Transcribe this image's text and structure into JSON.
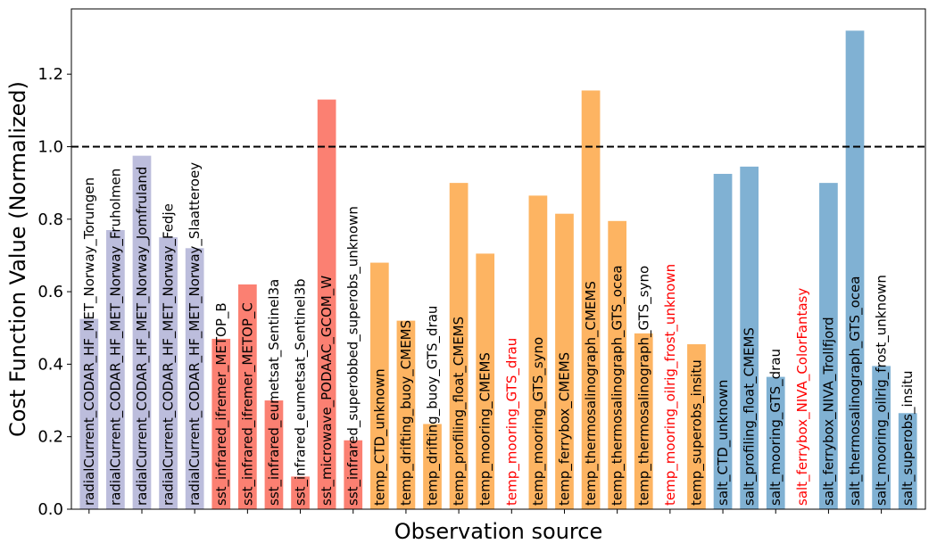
{
  "chart_data": {
    "type": "bar",
    "xlabel": "Observation source",
    "ylabel": "Cost Function Value (Normalized)",
    "ylim": [
      0,
      1.38
    ],
    "yticks": [
      "0.0",
      "0.2",
      "0.4",
      "0.6",
      "0.8",
      "1.0",
      "1.2"
    ],
    "reference_line": {
      "y": 1.0,
      "style": "dashed",
      "color": "#000000"
    },
    "grid": false,
    "legend": "none",
    "categories": [
      "radialCurrent_CODAR_HF_MET_Norway_Torungen",
      "radialCurrent_CODAR_HF_MET_Norway_Fruholmen",
      "radialCurrent_CODAR_HF_MET_Norway_Jomfruland",
      "radialCurrent_CODAR_HF_MET_Norway_Fedje",
      "radialCurrent_CODAR_HF_MET_Norway_Slaatteroey",
      "sst_infrared_ifremer_METOP_B",
      "sst_infrared_ifremer_METOP_C",
      "sst_infrared_eumetsat_Sentinel3a",
      "sst_infrared_eumetsat_Sentinel3b",
      "sst_microwave_PODAAC_GCOM_W",
      "sst_infrared_superobbed_superobs_unknown",
      "temp_CTD_unknown",
      "temp_drifting_buoy_CMEMS",
      "temp_drifting_buoy_GTS_drau",
      "temp_profiling_float_CMEMS",
      "temp_mooring_CMEMS",
      "temp_mooring_GTS_drau",
      "temp_mooring_GTS_syno",
      "temp_ferrybox_CMEMS",
      "temp_thermosalinograph_CMEMS",
      "temp_thermosalinograph_GTS_ocea",
      "temp_thermosalinograph_GTS_syno",
      "temp_mooring_oilrig_frost_unknown",
      "temp_superobs_insitu",
      "salt_CTD_unknown",
      "salt_profiling_float_CMEMS",
      "salt_mooring_GTS_drau",
      "salt_ferrybox_NIVA_ColorFantasy",
      "salt_ferrybox_NIVA_Trollfjord",
      "salt_thermosalinograph_GTS_ocea",
      "salt_mooring_oilrig_frost_unknown",
      "salt_superobs_insitu"
    ],
    "values": [
      0.525,
      0.77,
      0.975,
      0.75,
      0.72,
      0.47,
      0.62,
      0.3,
      0.09,
      1.13,
      0.19,
      0.68,
      0.52,
      0.235,
      0.9,
      0.705,
      0.0,
      0.865,
      0.815,
      1.155,
      0.795,
      0.485,
      0.0,
      0.455,
      0.925,
      0.945,
      0.365,
      0.0,
      0.9,
      1.32,
      0.395,
      0.265
    ],
    "bar_colors": [
      "#bcbddc",
      "#bcbddc",
      "#bcbddc",
      "#bcbddc",
      "#bcbddc",
      "#fb8072",
      "#fb8072",
      "#fb8072",
      "#fb8072",
      "#fb8072",
      "#fb8072",
      "#fdb462",
      "#fdb462",
      "#fdb462",
      "#fdb462",
      "#fdb462",
      "#fdb462",
      "#fdb462",
      "#fdb462",
      "#fdb462",
      "#fdb462",
      "#fdb462",
      "#fdb462",
      "#fdb462",
      "#80b1d3",
      "#80b1d3",
      "#80b1d3",
      "#80b1d3",
      "#80b1d3",
      "#80b1d3",
      "#80b1d3",
      "#80b1d3"
    ],
    "label_colors": [
      "#000000",
      "#000000",
      "#000000",
      "#000000",
      "#000000",
      "#000000",
      "#000000",
      "#000000",
      "#000000",
      "#000000",
      "#000000",
      "#000000",
      "#000000",
      "#000000",
      "#000000",
      "#000000",
      "#ff0000",
      "#000000",
      "#000000",
      "#000000",
      "#000000",
      "#000000",
      "#ff0000",
      "#000000",
      "#000000",
      "#000000",
      "#000000",
      "#ff0000",
      "#000000",
      "#000000",
      "#000000",
      "#000000"
    ]
  }
}
